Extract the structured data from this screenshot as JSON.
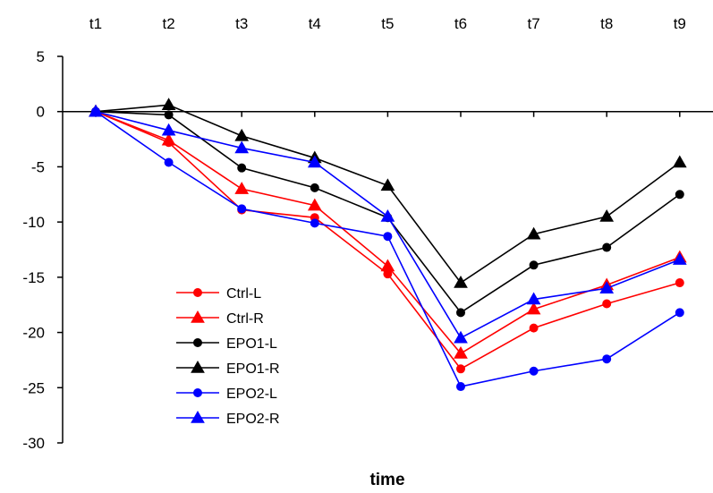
{
  "chart_data": {
    "type": "line",
    "title": "",
    "xlabel": "time",
    "ylabel": "",
    "categories": [
      "t1",
      "t2",
      "t3",
      "t4",
      "t5",
      "t6",
      "t7",
      "t8",
      "t9"
    ],
    "x_axis_position": "top",
    "ylim": [
      -30,
      5
    ],
    "yticks": [
      5,
      0,
      -5,
      -10,
      -15,
      -20,
      -25,
      -30
    ],
    "grid": false,
    "legend_position": "bottom-left",
    "series": [
      {
        "name": "Ctrl-L",
        "color": "#ff0000",
        "marker": "circle",
        "values": [
          0,
          -2.8,
          -8.9,
          -9.6,
          -14.7,
          -23.3,
          -19.6,
          -17.4,
          -15.5
        ]
      },
      {
        "name": "Ctrl-R",
        "color": "#ff0000",
        "marker": "triangle",
        "values": [
          0,
          -2.6,
          -7.0,
          -8.5,
          -14.0,
          -21.9,
          -17.9,
          -15.7,
          -13.2
        ]
      },
      {
        "name": "EPO1-L",
        "color": "#000000",
        "marker": "circle",
        "values": [
          0,
          -0.3,
          -5.1,
          -6.9,
          -9.6,
          -18.2,
          -13.9,
          -12.3,
          -7.5
        ]
      },
      {
        "name": "EPO1-R",
        "color": "#000000",
        "marker": "triangle",
        "values": [
          0,
          0.6,
          -2.2,
          -4.2,
          -6.7,
          -15.5,
          -11.1,
          -9.5,
          -4.6
        ]
      },
      {
        "name": "EPO2-L",
        "color": "#0000ff",
        "marker": "circle",
        "values": [
          0,
          -4.6,
          -8.8,
          -10.1,
          -11.3,
          -24.9,
          -23.5,
          -22.4,
          -18.2
        ]
      },
      {
        "name": "EPO2-R",
        "color": "#0000ff",
        "marker": "triangle",
        "values": [
          0,
          -1.7,
          -3.3,
          -4.6,
          -9.5,
          -20.5,
          -17.0,
          -16.0,
          -13.4
        ]
      }
    ]
  }
}
